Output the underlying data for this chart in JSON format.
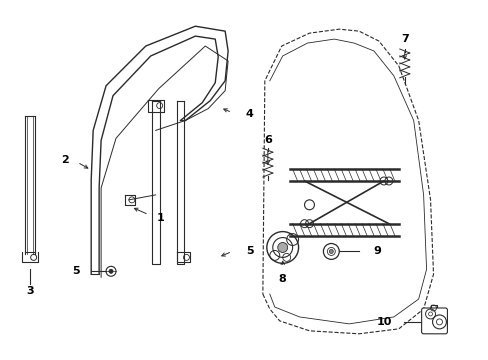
{
  "bg_color": "#ffffff",
  "line_color": "#2a2a2a",
  "dashed_color": "#2a2a2a",
  "label_color": "#000000",
  "fig_width": 4.89,
  "fig_height": 3.6,
  "dpi": 100
}
